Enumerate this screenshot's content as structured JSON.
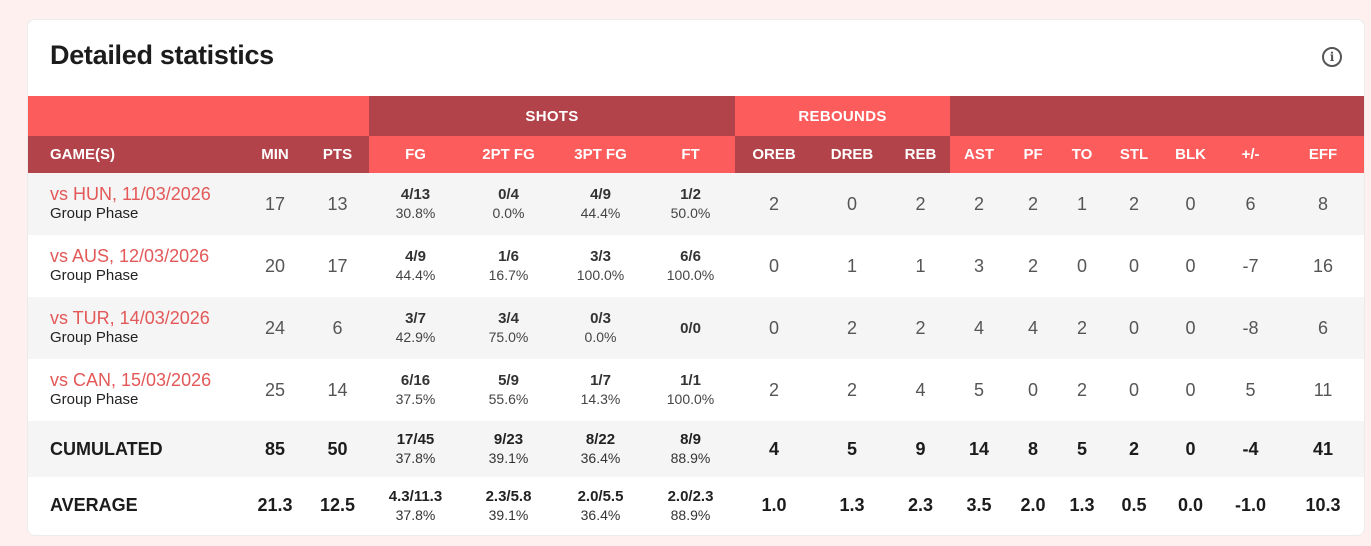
{
  "title": "Detailed statistics",
  "groups": {
    "shots": "SHOTS",
    "rebounds": "REBOUNDS"
  },
  "headers": [
    "GAME(S)",
    "MIN",
    "PTS",
    "FG",
    "2PT FG",
    "3PT FG",
    "FT",
    "OREB",
    "DREB",
    "REB",
    "AST",
    "PF",
    "TO",
    "STL",
    "BLK",
    "+/-",
    "EFF"
  ],
  "games": [
    {
      "game": "vs HUN, 11/03/2026",
      "phase": "Group Phase",
      "min": "17",
      "pts": "13",
      "fg": [
        "4/13",
        "30.8%"
      ],
      "fg2": [
        "0/4",
        "0.0%"
      ],
      "fg3": [
        "4/9",
        "44.4%"
      ],
      "ft": [
        "1/2",
        "50.0%"
      ],
      "oreb": "2",
      "dreb": "0",
      "reb": "2",
      "ast": "2",
      "pf": "2",
      "to": "1",
      "stl": "2",
      "blk": "0",
      "pm": "6",
      "eff": "8"
    },
    {
      "game": "vs AUS, 12/03/2026",
      "phase": "Group Phase",
      "min": "20",
      "pts": "17",
      "fg": [
        "4/9",
        "44.4%"
      ],
      "fg2": [
        "1/6",
        "16.7%"
      ],
      "fg3": [
        "3/3",
        "100.0%"
      ],
      "ft": [
        "6/6",
        "100.0%"
      ],
      "oreb": "0",
      "dreb": "1",
      "reb": "1",
      "ast": "3",
      "pf": "2",
      "to": "0",
      "stl": "0",
      "blk": "0",
      "pm": "-7",
      "eff": "16"
    },
    {
      "game": "vs TUR, 14/03/2026",
      "phase": "Group Phase",
      "min": "24",
      "pts": "6",
      "fg": [
        "3/7",
        "42.9%"
      ],
      "fg2": [
        "3/4",
        "75.0%"
      ],
      "fg3": [
        "0/3",
        "0.0%"
      ],
      "ft": [
        "0/0",
        ""
      ],
      "oreb": "0",
      "dreb": "2",
      "reb": "2",
      "ast": "4",
      "pf": "4",
      "to": "2",
      "stl": "0",
      "blk": "0",
      "pm": "-8",
      "eff": "6"
    },
    {
      "game": "vs CAN, 15/03/2026",
      "phase": "Group Phase",
      "min": "25",
      "pts": "14",
      "fg": [
        "6/16",
        "37.5%"
      ],
      "fg2": [
        "5/9",
        "55.6%"
      ],
      "fg3": [
        "1/7",
        "14.3%"
      ],
      "ft": [
        "1/1",
        "100.0%"
      ],
      "oreb": "2",
      "dreb": "2",
      "reb": "4",
      "ast": "5",
      "pf": "0",
      "to": "2",
      "stl": "0",
      "blk": "0",
      "pm": "5",
      "eff": "11"
    }
  ],
  "cumulated": {
    "label": "CUMULATED",
    "min": "85",
    "pts": "50",
    "fg": [
      "17/45",
      "37.8%"
    ],
    "fg2": [
      "9/23",
      "39.1%"
    ],
    "fg3": [
      "8/22",
      "36.4%"
    ],
    "ft": [
      "8/9",
      "88.9%"
    ],
    "oreb": "4",
    "dreb": "5",
    "reb": "9",
    "ast": "14",
    "pf": "8",
    "to": "5",
    "stl": "2",
    "blk": "0",
    "pm": "-4",
    "eff": "41"
  },
  "average": {
    "label": "AVERAGE",
    "min": "21.3",
    "pts": "12.5",
    "fg": [
      "4.3/11.3",
      "37.8%"
    ],
    "fg2": [
      "2.3/5.8",
      "39.1%"
    ],
    "fg3": [
      "2.0/5.5",
      "36.4%"
    ],
    "ft": [
      "2.0/2.3",
      "88.9%"
    ],
    "oreb": "1.0",
    "dreb": "1.3",
    "reb": "2.3",
    "ast": "3.5",
    "pf": "2.0",
    "to": "1.3",
    "stl": "0.5",
    "blk": "0.0",
    "pm": "-1.0",
    "eff": "10.3"
  },
  "colors": {
    "header_dark": "#b3434a",
    "header_light": "#fd5c5c",
    "link": "#e35858"
  },
  "icons": {
    "info": "info-icon"
  }
}
